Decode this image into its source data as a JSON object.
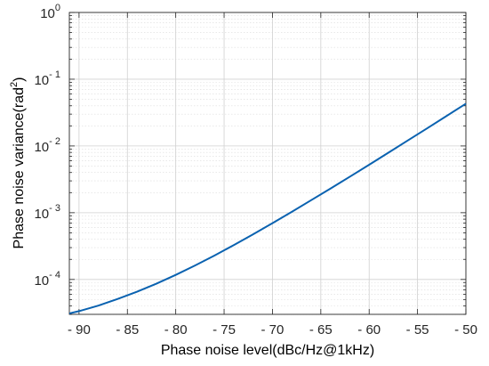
{
  "chart_data": {
    "type": "line",
    "xlabel": "Phase noise level(dBc/Hz@1kHz)",
    "ylabel": "Phase noise variance(rad",
    "ylabel_sup": "2",
    "ylabel_close": ")",
    "xlim": [
      -91,
      -50
    ],
    "ylim": [
      3e-05,
      1
    ],
    "yscale": "log",
    "grid": true,
    "x_ticks": [
      -90,
      -85,
      -80,
      -75,
      -70,
      -65,
      -60,
      -55,
      -50
    ],
    "x_tick_labels": [
      "- 90",
      "- 85",
      "- 80",
      "- 75",
      "- 70",
      "- 65",
      "- 60",
      "- 55",
      "- 50"
    ],
    "y_ticks": [
      {
        "value": 1,
        "base": "10",
        "exp": "0"
      },
      {
        "value": 0.1,
        "base": "10",
        "exp": "- 1"
      },
      {
        "value": 0.01,
        "base": "10",
        "exp": "- 2"
      },
      {
        "value": 0.001,
        "base": "10",
        "exp": "- 3"
      },
      {
        "value": 0.0001,
        "base": "10",
        "exp": "- 4"
      }
    ],
    "line_color": "#0a62b0",
    "series": [
      {
        "x": [
          -91,
          -90,
          -88,
          -86,
          -84,
          -82,
          -80,
          -78,
          -76,
          -74,
          -72,
          -70,
          -68,
          -66,
          -64,
          -62,
          -60,
          -58,
          -56,
          -54,
          -52,
          -50
        ],
        "y": [
          3.1e-05,
          3.35e-05,
          4.05e-05,
          5.1e-05,
          6.56e-05,
          8.65e-05,
          0.000117,
          0.000162,
          0.000228,
          0.000327,
          0.000475,
          0.000697,
          0.00103,
          0.00154,
          0.0023,
          0.00346,
          0.00523,
          0.00794,
          0.0121,
          0.0184,
          0.0281,
          0.043
        ]
      }
    ]
  }
}
